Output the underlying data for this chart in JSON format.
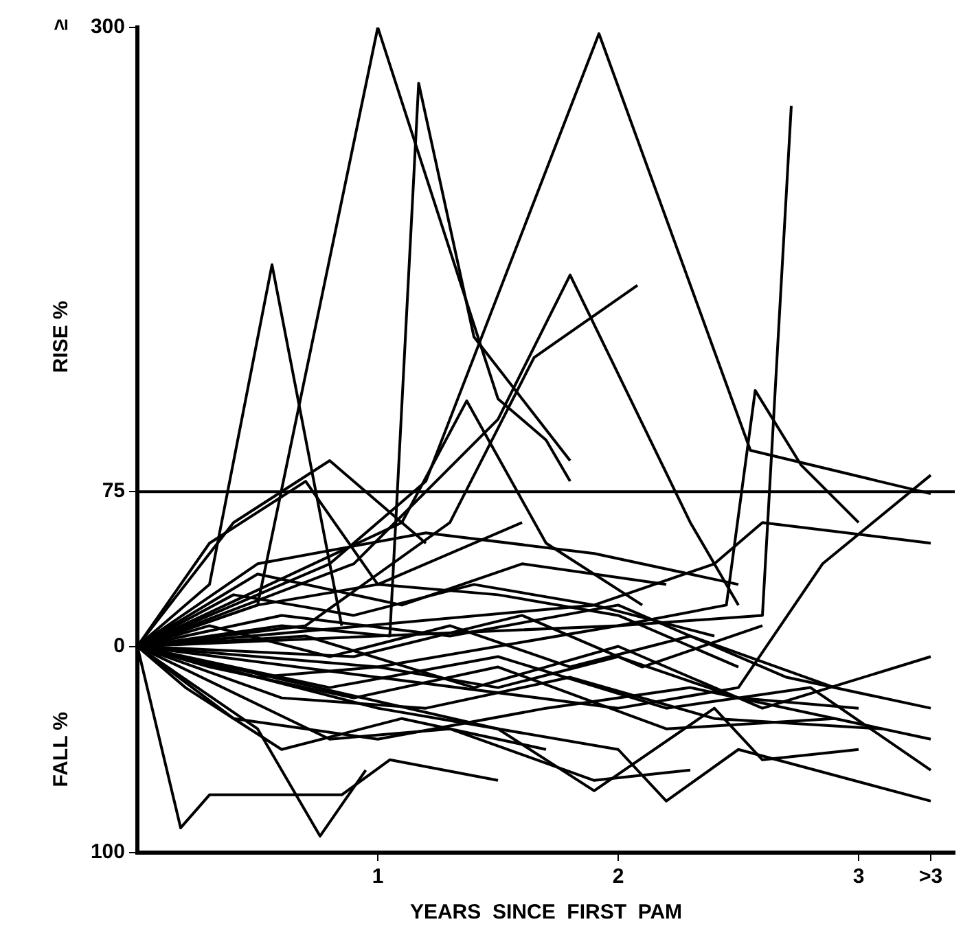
{
  "chart_data": {
    "type": "line",
    "xlabel": "YEARS  SINCE  FIRST  PAM",
    "ylabel": "RISE %",
    "annotations": [
      "FALL %",
      "≥"
    ],
    "xlim": [
      0,
      3.4
    ],
    "xticks": [
      1,
      2,
      3,
      {
        "value": 3.3,
        "label": ">3"
      }
    ],
    "ylim": [
      -100,
      300
    ],
    "yticks": [
      {
        "value": -100,
        "label": "100"
      },
      0,
      75,
      300
    ],
    "grid": false,
    "legend": false,
    "marker": "none",
    "line_style": "solid",
    "ref_lines": [
      {
        "axis": "y",
        "value": 75,
        "color": "#000000"
      }
    ],
    "series": [
      {
        "color": "#000000",
        "x": [
          0,
          0.5,
          1,
          1.5,
          1.7,
          1.8
        ],
        "values": [
          0,
          20,
          300,
          120,
          100,
          80
        ]
      },
      {
        "color": "#000000",
        "x": [
          0,
          0.3,
          0.56,
          0.85
        ],
        "values": [
          0,
          30,
          185,
          10
        ]
      },
      {
        "color": "#000000",
        "x": [
          0,
          0.6,
          1.05,
          1.17,
          1.4,
          1.8
        ],
        "values": [
          0,
          10,
          5,
          273,
          150,
          90
        ]
      },
      {
        "color": "#000000",
        "x": [
          0,
          0.8,
          1.2,
          1.92,
          2.55,
          3.3
        ],
        "values": [
          0,
          40,
          80,
          297,
          95,
          74
        ]
      },
      {
        "color": "#000000",
        "x": [
          0,
          1,
          2,
          2.6,
          2.72
        ],
        "values": [
          0,
          -10,
          10,
          15,
          262
        ]
      },
      {
        "color": "#000000",
        "x": [
          0,
          0.7,
          1.3,
          1.65,
          2.08
        ],
        "values": [
          0,
          10,
          60,
          140,
          175
        ]
      },
      {
        "color": "#000000",
        "x": [
          0,
          0.9,
          1.5,
          1.8,
          2.3,
          2.5
        ],
        "values": [
          0,
          40,
          110,
          180,
          60,
          20
        ]
      },
      {
        "color": "#000000",
        "x": [
          0,
          1.1,
          1.37,
          1.7,
          2.1
        ],
        "values": [
          0,
          60,
          119,
          50,
          20
        ]
      },
      {
        "color": "#000000",
        "x": [
          0,
          2,
          2.45,
          2.57,
          2.76,
          3.0
        ],
        "values": [
          0,
          10,
          20,
          124,
          88,
          60
        ]
      },
      {
        "color": "#000000",
        "x": [
          0,
          2,
          2.5,
          2.85,
          3.3
        ],
        "values": [
          0,
          -30,
          -20,
          40,
          83
        ]
      },
      {
        "color": "#000000",
        "x": [
          0,
          1.9,
          2.4,
          2.6,
          3.3
        ],
        "values": [
          0,
          20,
          40,
          60,
          50
        ]
      },
      {
        "color": "#000000",
        "x": [
          0,
          0.18,
          0.3,
          0.85,
          1.05,
          1.5
        ],
        "values": [
          0,
          -88,
          -72,
          -72,
          -55,
          -65
        ]
      },
      {
        "color": "#000000",
        "x": [
          0,
          0.5,
          0.76,
          0.95
        ],
        "values": [
          0,
          -40,
          -92,
          -60
        ]
      },
      {
        "color": "#000000",
        "x": [
          0,
          0.8,
          1.3,
          1.9,
          2.3
        ],
        "values": [
          0,
          -45,
          -40,
          -65,
          -60
        ]
      },
      {
        "color": "#000000",
        "x": [
          0,
          1,
          2,
          2.2,
          2.5,
          3.3
        ],
        "values": [
          0,
          -30,
          -50,
          -75,
          -50,
          -75
        ]
      },
      {
        "color": "#000000",
        "x": [
          0,
          1.5,
          1.9,
          2.4,
          2.6,
          3.0
        ],
        "values": [
          0,
          -40,
          -70,
          -30,
          -55,
          -50
        ]
      },
      {
        "color": "#000000",
        "x": [
          0,
          0.4,
          0.8,
          1.2
        ],
        "values": [
          0,
          60,
          90,
          50
        ]
      },
      {
        "color": "#000000",
        "x": [
          0,
          0.3,
          0.7,
          1.0,
          1.6
        ],
        "values": [
          0,
          50,
          80,
          30,
          60
        ]
      },
      {
        "color": "#000000",
        "x": [
          0,
          0.5,
          1.0,
          1.5,
          2.0,
          2.5
        ],
        "values": [
          0,
          20,
          30,
          25,
          15,
          -10
        ]
      },
      {
        "color": "#000000",
        "x": [
          0,
          0.5,
          1.0,
          1.5,
          2.0,
          2.5,
          3.0
        ],
        "values": [
          0,
          -15,
          -10,
          -20,
          -5,
          -25,
          -30
        ]
      },
      {
        "color": "#000000",
        "x": [
          0,
          0.4,
          0.9,
          1.4,
          1.9,
          2.4
        ],
        "values": [
          0,
          25,
          15,
          30,
          20,
          5
        ]
      },
      {
        "color": "#000000",
        "x": [
          0,
          0.6,
          1.2,
          1.8,
          2.4,
          3.1
        ],
        "values": [
          0,
          -25,
          -30,
          -15,
          -35,
          -40
        ]
      },
      {
        "color": "#000000",
        "x": [
          0,
          0.3,
          0.8,
          1.3,
          1.8,
          2.3,
          2.9
        ],
        "values": [
          0,
          10,
          -5,
          10,
          -10,
          5,
          -20
        ]
      },
      {
        "color": "#000000",
        "x": [
          0,
          0.5,
          1.1,
          1.6,
          2.2
        ],
        "values": [
          0,
          35,
          20,
          40,
          30
        ]
      },
      {
        "color": "#000000",
        "x": [
          0,
          0.4,
          1.0,
          1.7,
          2.3,
          3.3
        ],
        "values": [
          0,
          -35,
          -45,
          -30,
          -20,
          -45
        ]
      },
      {
        "color": "#000000",
        "x": [
          0,
          0.7,
          1.4,
          2.0,
          2.6,
          3.3
        ],
        "values": [
          0,
          5,
          -20,
          0,
          -30,
          -5
        ]
      },
      {
        "color": "#000000",
        "x": [
          0,
          0.2,
          0.6,
          1.1,
          1.7
        ],
        "values": [
          0,
          -20,
          -50,
          -35,
          -50
        ]
      },
      {
        "color": "#000000",
        "x": [
          0,
          0.6,
          1.3,
          2.0,
          2.7,
          3.3
        ],
        "values": [
          0,
          15,
          5,
          20,
          -15,
          -30
        ]
      },
      {
        "color": "#000000",
        "x": [
          0,
          0.9,
          1.6,
          2.1,
          2.6
        ],
        "values": [
          0,
          -5,
          15,
          -10,
          10
        ]
      },
      {
        "color": "#000000",
        "x": [
          0,
          0.3,
          0.9,
          1.5,
          2.2,
          2.9
        ],
        "values": [
          0,
          -10,
          -25,
          -10,
          -40,
          -35
        ]
      },
      {
        "color": "#000000",
        "x": [
          0,
          0.5,
          1.2,
          1.9,
          2.5
        ],
        "values": [
          0,
          40,
          55,
          45,
          30
        ]
      },
      {
        "color": "#000000",
        "x": [
          0,
          0.8,
          1.5,
          2.2,
          2.8,
          3.3
        ],
        "values": [
          0,
          -20,
          -5,
          -30,
          -20,
          -60
        ]
      }
    ]
  }
}
